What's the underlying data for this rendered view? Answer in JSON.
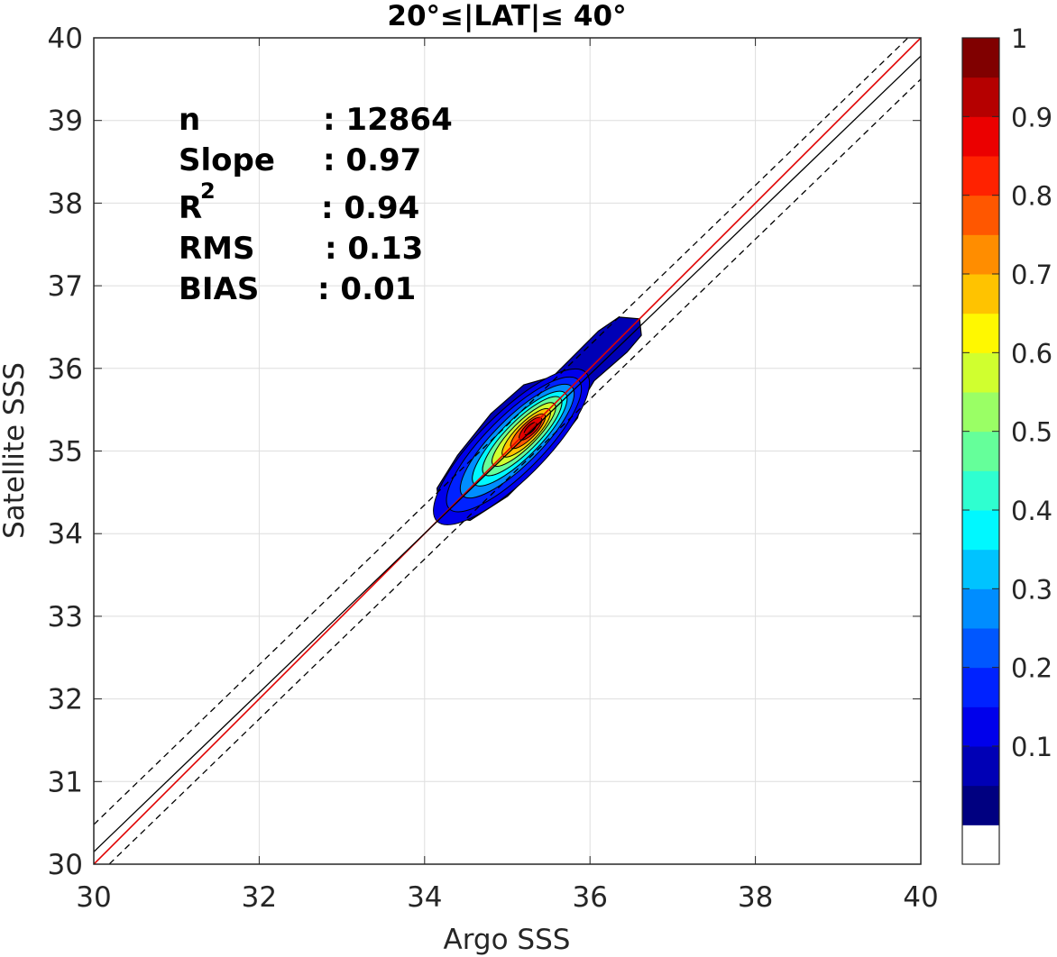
{
  "chart_data": {
    "type": "contour-density",
    "title": "20°≤|LAT|≤ 40°",
    "xlabel": "Argo SSS",
    "ylabel": "Satellite SSS",
    "xlim": [
      30,
      40
    ],
    "ylim": [
      30,
      40
    ],
    "grid": true,
    "x_ticks": [
      "30",
      "32",
      "34",
      "36",
      "38",
      "40"
    ],
    "y_ticks": [
      "30",
      "31",
      "32",
      "33",
      "34",
      "35",
      "36",
      "37",
      "38",
      "39",
      "40"
    ],
    "stats": {
      "n_label": "n",
      "n_value": ": 12864",
      "slope_label": "Slope",
      "slope_value": ": 0.97",
      "r2_label": "R",
      "r2_sup": "2",
      "r2_value": ": 0.94",
      "rms_label": "RMS",
      "rms_value": ": 0.13",
      "bias_label": "BIAS",
      "bias_value": ": 0.01"
    },
    "lines": [
      {
        "kind": "one-to-one",
        "color": "#e00000",
        "style": "solid",
        "slope": 1,
        "intercept": 0
      },
      {
        "kind": "regression",
        "color": "#000000",
        "style": "solid",
        "x": [
          30,
          40
        ],
        "y": [
          30.15,
          39.78
        ]
      },
      {
        "kind": "upper-envelope",
        "color": "#000000",
        "style": "dashed",
        "x": [
          30,
          40
        ],
        "y": [
          30.48,
          40.15
        ]
      },
      {
        "kind": "lower-envelope",
        "color": "#000000",
        "style": "dashed",
        "x": [
          30,
          40
        ],
        "y": [
          29.82,
          39.5
        ]
      }
    ],
    "density_peak": {
      "x": 35.28,
      "y": 35.27
    },
    "density_extent": {
      "x": [
        34.15,
        36.62
      ],
      "y": [
        34.2,
        36.62
      ]
    },
    "colorbar": {
      "colormap": "jet",
      "levels": 20,
      "tick_labels": [
        "0.1",
        "0.2",
        "0.3",
        "0.4",
        "0.5",
        "0.6",
        "0.7",
        "0.8",
        "0.9",
        "1"
      ],
      "tick_values": [
        0.1,
        0.2,
        0.3,
        0.4,
        0.5,
        0.6,
        0.7,
        0.8,
        0.9,
        1.0
      ]
    }
  }
}
